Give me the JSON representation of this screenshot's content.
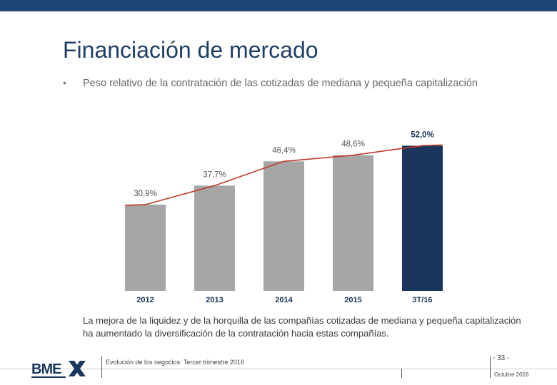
{
  "slide": {
    "title": "Financiación de mercado",
    "bullet_marker": "•",
    "bullet_text": "Peso relativo de la contratación de las cotizadas de mediana y pequeña capitalización",
    "conclusion": "La mejora de la liquidez y de la horquilla de las compañías cotizadas de mediana y pequeña capitalización ha aumentado la diversificación de la contratación hacia estas compañías."
  },
  "footer": {
    "logo_text": "BME",
    "subtitle": "Evolución de los negocios: Tercer trimestre 2016",
    "page": "- 33 -",
    "date": "Octubre 2016"
  },
  "colors": {
    "bar_gray": "#a6a6a6",
    "bar_highlight": "#1b365d",
    "trend_line": "#c0392b",
    "header_bar": "#1d4575"
  },
  "chart_data": {
    "type": "bar",
    "title": "",
    "categories": [
      "2012",
      "2013",
      "2014",
      "2015",
      "3T/16"
    ],
    "values": [
      30.9,
      37.7,
      46.4,
      48.6,
      52.0
    ],
    "value_labels": [
      "30,9%",
      "37,7%",
      "46,4%",
      "48,6%",
      "52,0%"
    ],
    "highlight_index": 4,
    "trend_line": true,
    "xlabel": "",
    "ylabel": "",
    "ylim": [
      0,
      60
    ],
    "grid": false,
    "legend": "none"
  }
}
